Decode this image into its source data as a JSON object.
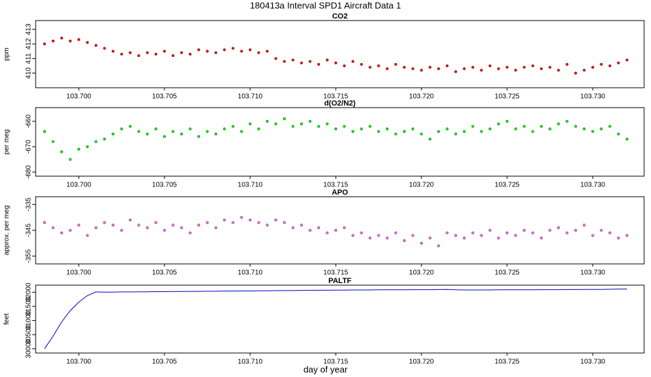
{
  "title": "180413a   Interval SPD1 Aircraft Data 1",
  "xlabel": "day of year",
  "chart_data": [
    {
      "type": "scatter",
      "title": "CO2",
      "ylabel": "ppm",
      "color": "#ee0000",
      "xlim": [
        103.69748,
        103.733
      ],
      "ylim": [
        409.0,
        413.6
      ],
      "yticks": [
        410,
        411,
        412,
        413
      ],
      "xticks": [
        {
          "value": 103.7,
          "label": "103.700"
        },
        {
          "value": 103.705,
          "label": "103.705"
        },
        {
          "value": 103.71,
          "label": "103.710"
        },
        {
          "value": 103.715,
          "label": "103.715"
        },
        {
          "value": 103.72,
          "label": "103.720"
        },
        {
          "value": 103.725,
          "label": "103.725"
        },
        {
          "value": 103.73,
          "label": "103.730"
        }
      ],
      "x": [
        103.698,
        103.6985,
        103.699,
        103.6995,
        103.7,
        103.7005,
        103.701,
        103.7015,
        103.702,
        103.7025,
        103.703,
        103.7035,
        103.704,
        103.7045,
        103.705,
        103.7055,
        103.706,
        103.7065,
        103.707,
        103.7075,
        103.708,
        103.7085,
        103.709,
        103.7095,
        103.71,
        103.7105,
        103.711,
        103.7115,
        103.712,
        103.7125,
        103.713,
        103.7135,
        103.714,
        103.7145,
        103.715,
        103.7155,
        103.716,
        103.7165,
        103.717,
        103.7175,
        103.718,
        103.7185,
        103.719,
        103.7195,
        103.72,
        103.7205,
        103.721,
        103.7215,
        103.722,
        103.7225,
        103.723,
        103.7235,
        103.724,
        103.7245,
        103.725,
        103.7255,
        103.726,
        103.7265,
        103.727,
        103.7275,
        103.728,
        103.7285,
        103.729,
        103.7295,
        103.73,
        103.7305,
        103.731,
        103.7315,
        103.732
      ],
      "values": [
        412.0,
        412.2,
        412.4,
        412.2,
        412.3,
        412.1,
        411.9,
        411.7,
        411.5,
        411.3,
        411.4,
        411.2,
        411.4,
        411.3,
        411.5,
        411.2,
        411.4,
        411.3,
        411.6,
        411.5,
        411.4,
        411.6,
        411.7,
        411.5,
        411.6,
        411.4,
        411.5,
        411.0,
        410.8,
        410.9,
        410.7,
        410.8,
        410.6,
        410.9,
        410.7,
        410.5,
        410.8,
        410.6,
        410.4,
        410.5,
        410.3,
        410.6,
        410.4,
        410.3,
        410.2,
        410.4,
        410.3,
        410.5,
        410.1,
        410.3,
        410.4,
        410.2,
        410.5,
        410.3,
        410.4,
        410.2,
        410.4,
        410.5,
        410.3,
        410.4,
        410.2,
        410.6,
        410.0,
        410.2,
        410.4,
        410.6,
        410.5,
        410.7,
        410.9
      ]
    },
    {
      "type": "scatter",
      "title": "d(O2/N2)",
      "ylabel": "per meg",
      "color": "#00ee00",
      "xlim": [
        103.69748,
        103.733
      ],
      "ylim": [
        -681.6,
        -654.6
      ],
      "yticks": [
        -680,
        -670,
        -660
      ],
      "xticks": [
        {
          "value": 103.7,
          "label": "103.700"
        },
        {
          "value": 103.705,
          "label": "103.705"
        },
        {
          "value": 103.71,
          "label": "103.710"
        },
        {
          "value": 103.715,
          "label": "103.715"
        },
        {
          "value": 103.72,
          "label": "103.720"
        },
        {
          "value": 103.725,
          "label": "103.725"
        },
        {
          "value": 103.73,
          "label": "103.730"
        }
      ],
      "x": [
        103.698,
        103.6985,
        103.699,
        103.6995,
        103.7,
        103.7005,
        103.701,
        103.7015,
        103.702,
        103.7025,
        103.703,
        103.7035,
        103.704,
        103.7045,
        103.705,
        103.7055,
        103.706,
        103.7065,
        103.707,
        103.7075,
        103.708,
        103.7085,
        103.709,
        103.7095,
        103.71,
        103.7105,
        103.711,
        103.7115,
        103.712,
        103.7125,
        103.713,
        103.7135,
        103.714,
        103.7145,
        103.715,
        103.7155,
        103.716,
        103.7165,
        103.717,
        103.7175,
        103.718,
        103.7185,
        103.719,
        103.7195,
        103.72,
        103.7205,
        103.721,
        103.7215,
        103.722,
        103.7225,
        103.723,
        103.7235,
        103.724,
        103.7245,
        103.725,
        103.7255,
        103.726,
        103.7265,
        103.727,
        103.7275,
        103.728,
        103.7285,
        103.729,
        103.7295,
        103.73,
        103.7305,
        103.731,
        103.7315,
        103.732
      ],
      "values": [
        -664,
        -668,
        -672,
        -675,
        -671,
        -670,
        -668,
        -667,
        -665,
        -663,
        -662,
        -664,
        -665,
        -663,
        -666,
        -664,
        -665,
        -663,
        -666,
        -664,
        -665,
        -663,
        -662,
        -664,
        -661,
        -663,
        -660,
        -661,
        -659,
        -662,
        -661,
        -660,
        -662,
        -661,
        -663,
        -662,
        -664,
        -663,
        -662,
        -664,
        -663,
        -665,
        -664,
        -663,
        -665,
        -667,
        -664,
        -663,
        -665,
        -664,
        -662,
        -664,
        -663,
        -661,
        -660,
        -663,
        -662,
        -664,
        -662,
        -663,
        -661,
        -660,
        -662,
        -663,
        -664,
        -663,
        -662,
        -665,
        -667
      ]
    },
    {
      "type": "scatter",
      "title": "APO",
      "ylabel": "approx. per meg",
      "color": "#ee66ee",
      "xlim": [
        103.69748,
        103.733
      ],
      "ylim": [
        -358,
        -332
      ],
      "yticks": [
        -355,
        -345,
        -335
      ],
      "xticks": [
        {
          "value": 103.7,
          "label": "103.700"
        },
        {
          "value": 103.705,
          "label": "103.705"
        },
        {
          "value": 103.71,
          "label": "103.710"
        },
        {
          "value": 103.715,
          "label": "103.715"
        },
        {
          "value": 103.72,
          "label": "103.720"
        },
        {
          "value": 103.725,
          "label": "103.725"
        },
        {
          "value": 103.73,
          "label": "103.730"
        }
      ],
      "x": [
        103.698,
        103.6985,
        103.699,
        103.6995,
        103.7,
        103.7005,
        103.701,
        103.7015,
        103.702,
        103.7025,
        103.703,
        103.7035,
        103.704,
        103.7045,
        103.705,
        103.7055,
        103.706,
        103.7065,
        103.707,
        103.7075,
        103.708,
        103.7085,
        103.709,
        103.7095,
        103.71,
        103.7105,
        103.711,
        103.7115,
        103.712,
        103.7125,
        103.713,
        103.7135,
        103.714,
        103.7145,
        103.715,
        103.7155,
        103.716,
        103.7165,
        103.717,
        103.7175,
        103.718,
        103.7185,
        103.719,
        103.7195,
        103.72,
        103.7205,
        103.721,
        103.7215,
        103.722,
        103.7225,
        103.723,
        103.7235,
        103.724,
        103.7245,
        103.725,
        103.7255,
        103.726,
        103.7265,
        103.727,
        103.7275,
        103.728,
        103.7285,
        103.729,
        103.7295,
        103.73,
        103.7305,
        103.731,
        103.7315,
        103.732
      ],
      "values": [
        -342,
        -344,
        -346,
        -345,
        -343,
        -347,
        -344,
        -342,
        -343,
        -345,
        -341,
        -343,
        -344,
        -342,
        -345,
        -343,
        -344,
        -346,
        -343,
        -342,
        -344,
        -341,
        -342,
        -340,
        -341,
        -342,
        -343,
        -341,
        -342,
        -344,
        -343,
        -345,
        -344,
        -346,
        -345,
        -344,
        -347,
        -346,
        -348,
        -347,
        -348,
        -346,
        -349,
        -347,
        -350,
        -348,
        -351,
        -346,
        -347,
        -348,
        -346,
        -347,
        -345,
        -348,
        -346,
        -347,
        -345,
        -346,
        -348,
        -345,
        -344,
        -346,
        -345,
        -343,
        -347,
        -345,
        -346,
        -348,
        -347
      ]
    },
    {
      "type": "line",
      "title": "PALTF",
      "ylabel": "feet",
      "color": "#0000cc",
      "xlim": [
        103.69748,
        103.733
      ],
      "ylim": [
        29850,
        32250
      ],
      "yticks": [
        30000,
        30500,
        31000,
        31500,
        32000
      ],
      "xticks": [
        {
          "value": 103.7,
          "label": "103.700"
        },
        {
          "value": 103.705,
          "label": "103.705"
        },
        {
          "value": 103.71,
          "label": "103.710"
        },
        {
          "value": 103.715,
          "label": "103.715"
        },
        {
          "value": 103.72,
          "label": "103.720"
        },
        {
          "value": 103.725,
          "label": "103.725"
        },
        {
          "value": 103.73,
          "label": "103.730"
        }
      ],
      "x": [
        103.698,
        103.6985,
        103.699,
        103.6995,
        103.7,
        103.7005,
        103.701,
        103.7015,
        103.702,
        103.7025,
        103.703,
        103.7035,
        103.704,
        103.7045,
        103.705,
        103.7055,
        103.706,
        103.7065,
        103.707,
        103.7075,
        103.708,
        103.7085,
        103.709,
        103.7095,
        103.71,
        103.7105,
        103.711,
        103.7115,
        103.712,
        103.7125,
        103.713,
        103.7135,
        103.714,
        103.7145,
        103.715,
        103.7155,
        103.716,
        103.7165,
        103.717,
        103.7175,
        103.718,
        103.7185,
        103.719,
        103.7195,
        103.72,
        103.7205,
        103.721,
        103.7215,
        103.722,
        103.7225,
        103.723,
        103.7235,
        103.724,
        103.7245,
        103.725,
        103.7255,
        103.726,
        103.7265,
        103.727,
        103.7275,
        103.728,
        103.7285,
        103.729,
        103.7295,
        103.73,
        103.7305,
        103.731,
        103.7315,
        103.732
      ],
      "values": [
        30000,
        30450,
        30950,
        31350,
        31650,
        31880,
        32010,
        32000,
        32005,
        32010,
        32010,
        32015,
        32015,
        32020,
        32020,
        32025,
        32025,
        32030,
        32030,
        32035,
        32035,
        32040,
        32040,
        32045,
        32045,
        32050,
        32050,
        32055,
        32060,
        32060,
        32065,
        32065,
        32070,
        32070,
        32075,
        32075,
        32080,
        32080,
        32080,
        32085,
        32085,
        32085,
        32085,
        32090,
        32090,
        32090,
        32095,
        32100,
        32085,
        32080,
        32080,
        32080,
        32080,
        32085,
        32085,
        32085,
        32085,
        32085,
        32090,
        32090,
        32090,
        32095,
        32095,
        32100,
        32100,
        32100,
        32105,
        32110,
        32115
      ]
    }
  ]
}
